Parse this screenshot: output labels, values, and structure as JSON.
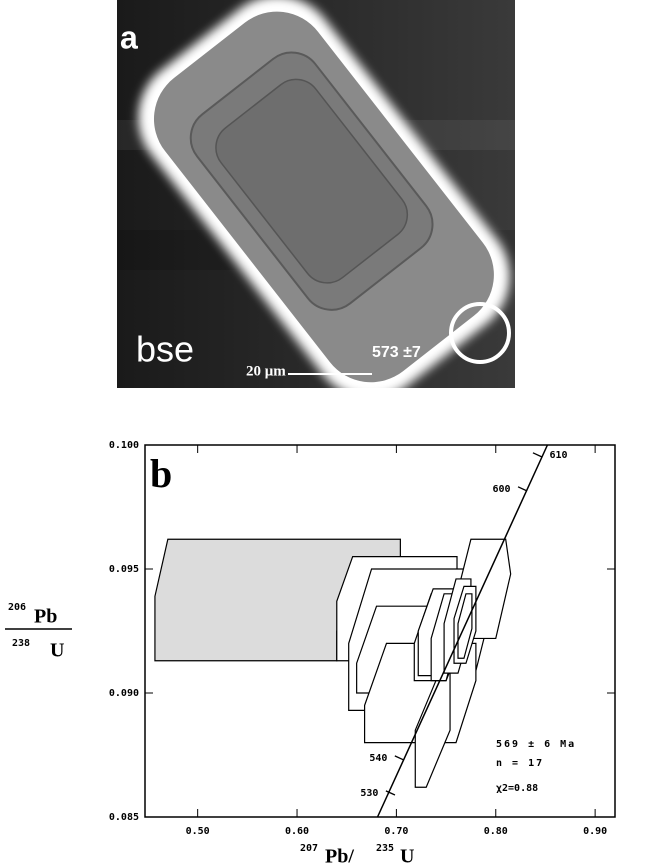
{
  "panel_a": {
    "letter": "a",
    "mode": "bse",
    "scale": "20 μm",
    "age": "573 ±7"
  },
  "chart_data": {
    "type": "polygon",
    "letter": "b",
    "xlabel": {
      "mass1": "207",
      "el1": "Pb/",
      "mass2": "235",
      "el2": "U"
    },
    "ylabel": {
      "mass1": "206",
      "el1": "Pb",
      "mass2": "238",
      "el2": "U"
    },
    "xlim": [
      0.447,
      0.92
    ],
    "ylim": [
      0.085,
      0.1
    ],
    "xticks": [
      {
        "value": 0.5,
        "label": "0.50"
      },
      {
        "value": 0.6,
        "label": "0.60"
      },
      {
        "value": 0.7,
        "label": "0.70"
      },
      {
        "value": 0.8,
        "label": "0.80"
      },
      {
        "value": 0.9,
        "label": "0.90"
      }
    ],
    "yticks": [
      {
        "value": 0.085,
        "label": "0.085"
      },
      {
        "value": 0.09,
        "label": "0.090"
      },
      {
        "value": 0.095,
        "label": "0.095"
      },
      {
        "value": 0.1,
        "label": "0.100"
      }
    ],
    "concordia": {
      "x": [
        0.681,
        0.852
      ],
      "y": [
        0.085,
        0.1
      ],
      "ages": [
        530,
        540,
        600,
        610
      ],
      "age_x": [
        0.694,
        0.703,
        0.827,
        0.842
      ],
      "age_y": [
        0.08597,
        0.08738,
        0.09823,
        0.0996
      ]
    },
    "annotation": [
      "569 ± 6 Ma",
      "n = 17",
      "χ2=0.88"
    ],
    "boxes": [
      {
        "color": "#dcdcdc",
        "x": [
          0.457,
          0.457,
          0.47,
          0.704,
          0.704,
          0.64,
          0.64
        ],
        "y": [
          0.0913,
          0.0939,
          0.0962,
          0.0962,
          0.0954,
          0.0925,
          0.0913
        ]
      },
      {
        "color": "#ffffff",
        "x": [
          0.64,
          0.64,
          0.656,
          0.761,
          0.761,
          0.745
        ],
        "y": [
          0.0913,
          0.0937,
          0.0955,
          0.0955,
          0.0937,
          0.0913
        ]
      },
      {
        "color": "#ffffff",
        "x": [
          0.652,
          0.652,
          0.675,
          0.79,
          0.79,
          0.77
        ],
        "y": [
          0.0893,
          0.092,
          0.095,
          0.095,
          0.0925,
          0.0893
        ]
      },
      {
        "color": "#ffffff",
        "x": [
          0.66,
          0.66,
          0.68,
          0.77,
          0.77,
          0.75
        ],
        "y": [
          0.09,
          0.0912,
          0.0935,
          0.0935,
          0.092,
          0.09
        ]
      },
      {
        "color": "#ffffff",
        "x": [
          0.668,
          0.668,
          0.69,
          0.78,
          0.78,
          0.76
        ],
        "y": [
          0.088,
          0.0895,
          0.092,
          0.092,
          0.0905,
          0.088
        ]
      },
      {
        "color": "#ffffff",
        "x": [
          0.758,
          0.775,
          0.81,
          0.815,
          0.8,
          0.765
        ],
        "y": [
          0.0935,
          0.0962,
          0.0962,
          0.0948,
          0.0922,
          0.0922
        ]
      },
      {
        "color": "#ffffff",
        "x": [
          0.719,
          0.719,
          0.745,
          0.754,
          0.754,
          0.73
        ],
        "y": [
          0.0862,
          0.0885,
          0.091,
          0.091,
          0.0885,
          0.0862
        ]
      },
      {
        "color": "#ffffff",
        "x": [
          0.718,
          0.718,
          0.735,
          0.77,
          0.77,
          0.75
        ],
        "y": [
          0.0905,
          0.092,
          0.094,
          0.094,
          0.0925,
          0.0905
        ]
      },
      {
        "color": "#ffffff",
        "x": [
          0.722,
          0.722,
          0.737,
          0.76,
          0.76,
          0.745
        ],
        "y": [
          0.0907,
          0.0925,
          0.0942,
          0.0942,
          0.0922,
          0.0907
        ]
      },
      {
        "color": "#ffffff",
        "x": [
          0.735,
          0.735,
          0.748,
          0.762,
          0.762,
          0.75
        ],
        "y": [
          0.0905,
          0.0922,
          0.094,
          0.094,
          0.0923,
          0.0905
        ]
      },
      {
        "color": "#ffffff",
        "x": [
          0.748,
          0.748,
          0.76,
          0.775,
          0.775,
          0.762
        ],
        "y": [
          0.0908,
          0.0928,
          0.0946,
          0.0946,
          0.0926,
          0.0908
        ]
      },
      {
        "color": "#ffffff",
        "x": [
          0.758,
          0.758,
          0.768,
          0.78,
          0.78,
          0.77
        ],
        "y": [
          0.0912,
          0.093,
          0.0943,
          0.0943,
          0.0925,
          0.0912
        ]
      },
      {
        "color": "#ffffff",
        "x": [
          0.762,
          0.762,
          0.77,
          0.776,
          0.776,
          0.768
        ],
        "y": [
          0.0914,
          0.0928,
          0.094,
          0.094,
          0.0926,
          0.0914
        ]
      }
    ]
  }
}
